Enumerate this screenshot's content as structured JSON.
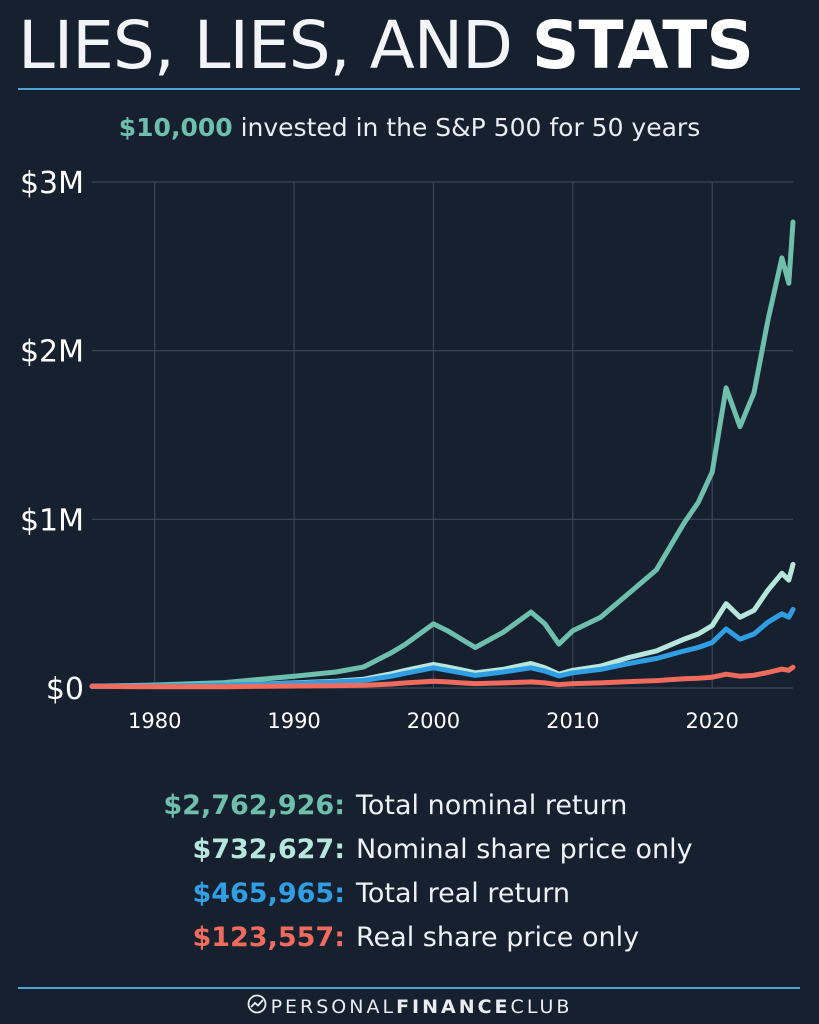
{
  "header": {
    "title_light": "LIES, LIES, AND",
    "title_bold": "STATS",
    "subtitle_amount": "$10,000",
    "subtitle_rest": "invested in the S&P 500 for 50 years"
  },
  "colors": {
    "background": "#16202f",
    "rule": "#4aa6d4",
    "total_nominal": "#6fbfad",
    "nominal_price": "#b6e6dc",
    "total_real": "#2f9ee3",
    "real_price": "#ee6b5e"
  },
  "chart_data": {
    "type": "line",
    "title": "",
    "xlabel": "",
    "ylabel": "",
    "xlim": [
      1975.5,
      2025.8
    ],
    "ylim": [
      0,
      3000000
    ],
    "x_ticks": [
      1980,
      1990,
      2000,
      2010,
      2020
    ],
    "x_tick_labels": [
      "1980",
      "1990",
      "2000",
      "2010",
      "2020"
    ],
    "y_ticks": [
      0,
      1000000,
      2000000,
      3000000
    ],
    "y_tick_labels": [
      "$0",
      "$1M",
      "$2M",
      "$3M"
    ],
    "grid": true,
    "legend": "bottom",
    "x": [
      1975.5,
      1980,
      1985,
      1990,
      1993,
      1995,
      1997,
      1998,
      2000,
      2001,
      2002,
      2003,
      2005,
      2007,
      2008,
      2009,
      2010,
      2012,
      2014,
      2016,
      2018,
      2019,
      2020,
      2021,
      2022,
      2023,
      2024,
      2025,
      2025.5,
      2025.8
    ],
    "series": [
      {
        "name": "Total nominal return",
        "color_key": "total_nominal",
        "values": [
          10000,
          18000,
          32000,
          70000,
          95000,
          125000,
          210000,
          260000,
          380000,
          340000,
          290000,
          240000,
          330000,
          450000,
          380000,
          260000,
          340000,
          420000,
          560000,
          700000,
          980000,
          1100000,
          1280000,
          1780000,
          1550000,
          1750000,
          2180000,
          2550000,
          2400000,
          2762926
        ]
      },
      {
        "name": "Nominal share price only",
        "color_key": "nominal_price",
        "values": [
          10000,
          11000,
          15000,
          30000,
          40000,
          52000,
          85000,
          105000,
          140000,
          125000,
          108000,
          90000,
          110000,
          145000,
          120000,
          82000,
          105000,
          130000,
          180000,
          220000,
          290000,
          320000,
          370000,
          500000,
          420000,
          460000,
          580000,
          680000,
          640000,
          732627
        ]
      },
      {
        "name": "Total real return",
        "color_key": "total_real",
        "values": [
          10000,
          11500,
          17000,
          28000,
          36000,
          45000,
          70000,
          88000,
          120000,
          105000,
          90000,
          75000,
          95000,
          120000,
          100000,
          72000,
          90000,
          110000,
          145000,
          175000,
          220000,
          240000,
          270000,
          350000,
          290000,
          320000,
          390000,
          440000,
          420000,
          465965
        ]
      },
      {
        "name": "Real share price only",
        "color_key": "real_price",
        "values": [
          10000,
          7000,
          8000,
          12000,
          14000,
          16000,
          24000,
          30000,
          40000,
          36000,
          30000,
          26000,
          30000,
          36000,
          30000,
          20000,
          26000,
          30000,
          38000,
          44000,
          55000,
          58000,
          64000,
          82000,
          70000,
          76000,
          92000,
          112000,
          105000,
          123557
        ]
      }
    ]
  },
  "legend_items": [
    {
      "value": "$2,762,926:",
      "label": "Total nominal return",
      "color_key": "total_nominal"
    },
    {
      "value": "$732,627:",
      "label": "Nominal share price only",
      "color_key": "nominal_price"
    },
    {
      "value": "$465,965:",
      "label": "Total real return",
      "color_key": "total_real"
    },
    {
      "value": "$123,557:",
      "label": "Real share price only",
      "color_key": "real_price"
    }
  ],
  "footer": {
    "logo_icon": "personal-finance-club-logo-icon",
    "brand_regular": "PERSONAL",
    "brand_bold": "FINANCE",
    "brand_end": "CLUB"
  }
}
